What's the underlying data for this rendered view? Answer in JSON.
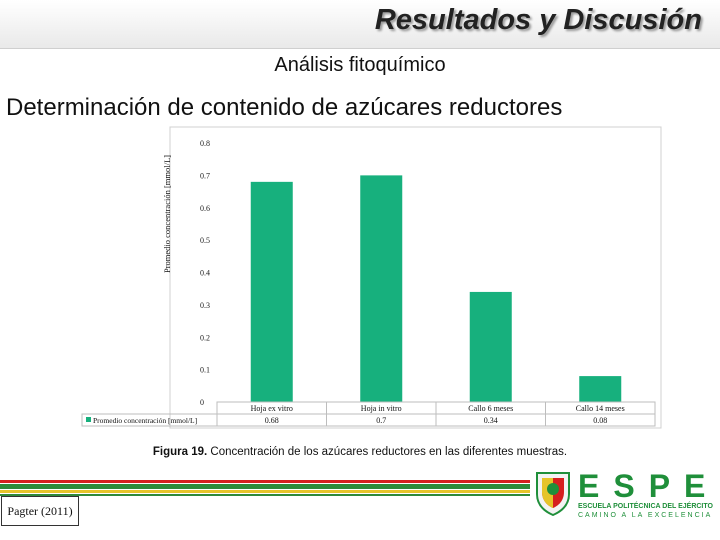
{
  "header": {
    "title": "Resultados y Discusión",
    "subtitle": "Análisis fitoquímico",
    "heading": "Determinación de contenido de azúcares reductores"
  },
  "chart_data": {
    "type": "bar",
    "categories": [
      "Hoja ex vitro",
      "Hoja in vitro",
      "Callo 6 meses",
      "Callo 14 meses"
    ],
    "series": [
      {
        "name": "Promedio concentración [mmol/L]",
        "values": [
          0.68,
          0.7,
          0.34,
          0.08
        ]
      }
    ],
    "value_labels": [
      "0.68",
      "0.7",
      "0.34",
      "0.08"
    ],
    "ylabel": "Promedio concentración [mmol/L]",
    "ylim": [
      0,
      0.8
    ],
    "yticks": [
      "0",
      "0.1",
      "0.2",
      "0.3",
      "0.4",
      "0.5",
      "0.6",
      "0.7",
      "0.8"
    ],
    "grid": false,
    "legend_placement": "bottom-left data table",
    "bar_color": "#17b07d"
  },
  "caption": {
    "label": "Figura 19.",
    "text": " Concentración de los azúcares reductores en las diferentes muestras."
  },
  "footer": {
    "source": "Pagter (2011)",
    "logo_letters": "ESPE",
    "logo_line1": "ESCUELA POLITÉCNICA DEL EJÉRCITO",
    "logo_line2": "CAMINO A LA EXCELENCIA"
  },
  "colors": {
    "bar": "#17b07d",
    "stripe_red": "#d61f1f",
    "stripe_green": "#2f8a3a",
    "stripe_yellow": "#e6c429"
  }
}
